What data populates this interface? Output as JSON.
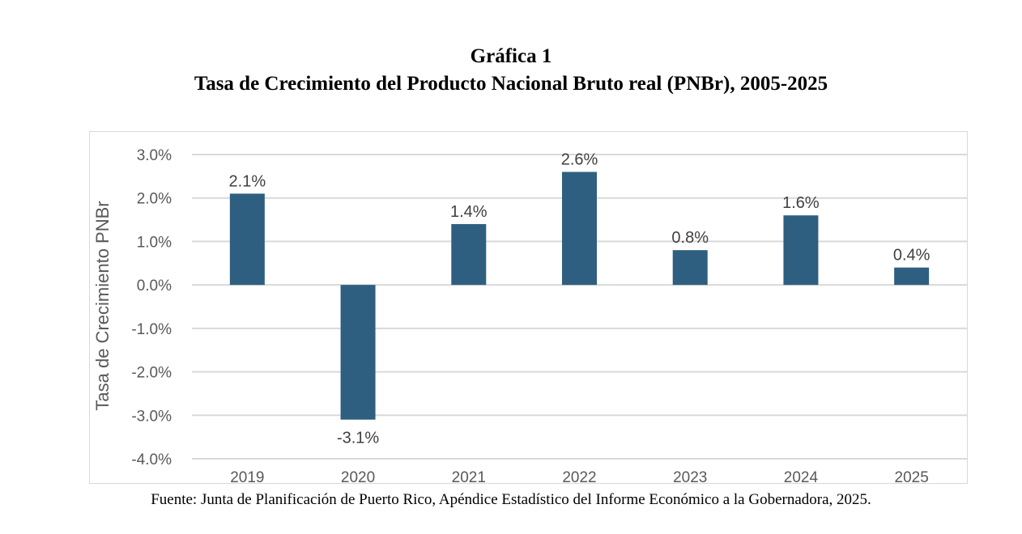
{
  "title": "Gráfica 1",
  "subtitle": "Tasa de Crecimiento del Producto Nacional Bruto real (PNBr), 2005-2025",
  "source": "Fuente: Junta de Planificación de Puerto Rico, Apéndice Estadístico del Informe Económico a la Gobernadora, 2025.",
  "colors": {
    "bar": "#2e5f80",
    "grid": "#d9d9d9",
    "axis_text": "#595959",
    "label_text": "#404040"
  },
  "chart_data": {
    "type": "bar",
    "categories": [
      "2019",
      "2020",
      "2021",
      "2022",
      "2023",
      "2024",
      "2025"
    ],
    "values": [
      2.1,
      -3.1,
      1.4,
      2.6,
      0.8,
      1.6,
      0.4
    ],
    "data_labels": [
      "2.1%",
      "-3.1%",
      "1.4%",
      "2.6%",
      "0.8%",
      "1.6%",
      "0.4%"
    ],
    "ylabel": "Tasa de Crecimiento PNBr",
    "ylim": [
      -4.0,
      3.0
    ],
    "yticks": [
      3.0,
      2.0,
      1.0,
      0.0,
      -1.0,
      -2.0,
      -3.0,
      -4.0
    ],
    "ytick_labels": [
      "3.0%",
      "2.0%",
      "1.0%",
      "0.0%",
      "-1.0%",
      "-2.0%",
      "-3.0%",
      "-4.0%"
    ],
    "grid": true,
    "legend": false
  }
}
